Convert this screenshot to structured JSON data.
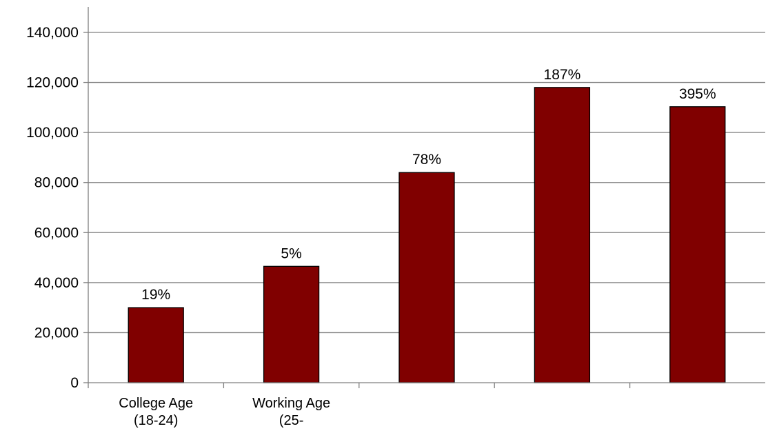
{
  "chart_data": {
    "type": "bar",
    "categories": [
      "College Age\n(18-24)",
      "Working Age\n(25-",
      "",
      "",
      ""
    ],
    "values": [
      30000,
      46500,
      84000,
      118000,
      110300
    ],
    "data_labels": [
      "19%",
      "5%",
      "78%",
      "187%",
      "395%"
    ],
    "title": "",
    "xlabel": "",
    "ylabel": "",
    "ylim": [
      0,
      140000
    ],
    "yticks": [
      0,
      20000,
      40000,
      60000,
      80000,
      100000,
      120000,
      140000
    ],
    "ytick_labels": [
      "0",
      "20,000",
      "40,000",
      "60,000",
      "80,000",
      "100,000",
      "120,000",
      "140,000"
    ],
    "grid": true,
    "legend": "none",
    "colors": {
      "bar": "#800000",
      "bar_stroke": "#000000",
      "grid": "#808080",
      "axis": "#808080"
    }
  }
}
